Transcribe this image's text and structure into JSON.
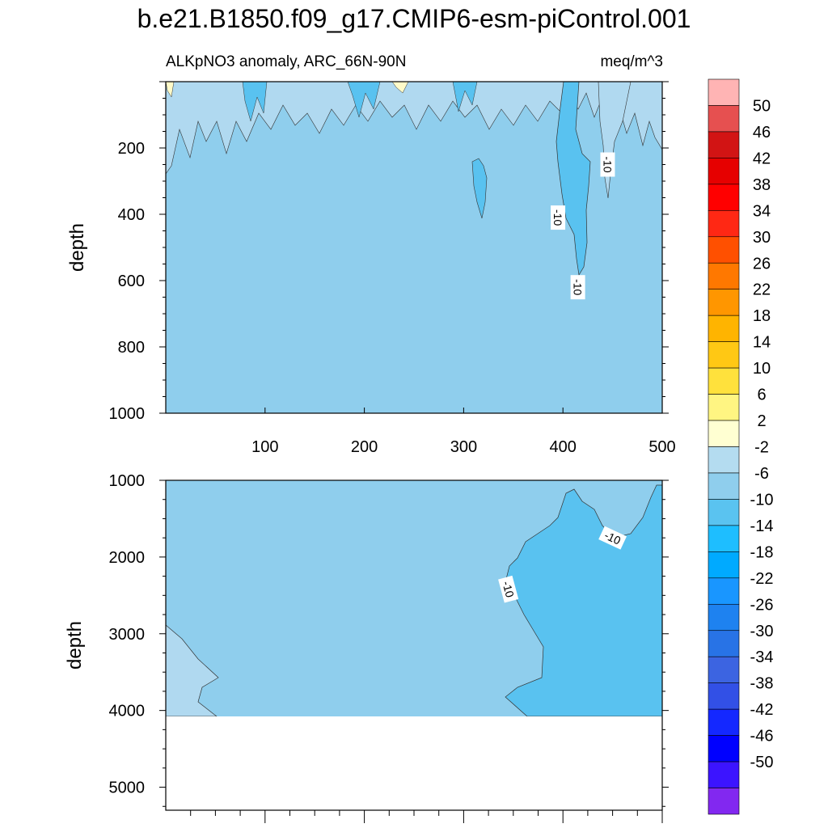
{
  "title": "b.e21.B1850.f09_g17.CMIP6-esm-piControl.001",
  "subtitle_left": "ALKpNO3 anomaly, ARC_66N-90N",
  "subtitle_right": "meq/m^3",
  "colors": {
    "bin_2": "#d3e8f5",
    "bin_6": "#b0d9f0",
    "bin_10": "#8fceed",
    "bin_14": "#59c2f0",
    "pos_small": "#fffac8"
  },
  "chart_data": [
    {
      "type": "contour",
      "panel": "upper",
      "xlim": [
        0,
        500
      ],
      "ylim": [
        1000,
        0
      ],
      "ylim_plot": [
        1000,
        0
      ],
      "xticks": [
        100,
        200,
        300,
        400,
        500
      ],
      "yticks": [
        200,
        400,
        600,
        800,
        1000
      ],
      "ylabel": "depth",
      "background_level": -10,
      "contour_labels": [
        {
          "text": "-10",
          "x": 445,
          "y": 250
        },
        {
          "text": "-10",
          "x": 395,
          "y": 410
        },
        {
          "text": "-10",
          "x": 415,
          "y": 620
        }
      ],
      "features": [
        {
          "level": -14,
          "note": "plume",
          "x": [
            385,
            445
          ],
          "y": [
            180,
            600
          ]
        },
        {
          "level": -14,
          "note": "patch",
          "x": [
            310,
            330
          ],
          "y": [
            230,
            340
          ]
        },
        {
          "level": -6,
          "note": "surface variability",
          "y": [
            0,
            250
          ]
        }
      ]
    },
    {
      "type": "contour",
      "panel": "lower",
      "xlim": [
        0,
        500
      ],
      "ylim": [
        5300,
        1000
      ],
      "yticks": [
        1000,
        2000,
        3000,
        4000,
        5000
      ],
      "ylabel": "depth",
      "data_bottom": 4120,
      "background_level": -10,
      "contour_labels": [
        {
          "text": "-10",
          "x": 450,
          "y": 1750
        },
        {
          "text": "-10",
          "x": 345,
          "y": 2420
        }
      ],
      "features": [
        {
          "level": -14,
          "note": "deep eastern water",
          "x": [
            340,
            500
          ],
          "y": [
            1100,
            4120
          ]
        },
        {
          "level": -6,
          "note": "bottom west",
          "x": [
            0,
            55
          ],
          "y": [
            2900,
            4120
          ]
        }
      ]
    }
  ],
  "colorbar": {
    "labels": [
      "50",
      "46",
      "42",
      "38",
      "34",
      "30",
      "26",
      "22",
      "18",
      "14",
      "10",
      "6",
      "2",
      "-2",
      "-6",
      "-10",
      "-14",
      "-18",
      "-22",
      "-26",
      "-30",
      "-34",
      "-38",
      "-42",
      "-46",
      "-50"
    ],
    "colors": [
      "#ffb4b4",
      "#e65050",
      "#d21414",
      "#e60000",
      "#ff0000",
      "#ff2814",
      "#ff5000",
      "#ff7800",
      "#ff9600",
      "#ffb400",
      "#ffc814",
      "#ffe13c",
      "#fff582",
      "#ffffd2",
      "#b4dcf0",
      "#8fceed",
      "#5ac3f0",
      "#1ebeff",
      "#00aaff",
      "#1996ff",
      "#1e82f0",
      "#2873e6",
      "#3c64e1",
      "#3250e6",
      "#1428ff",
      "#0000ff",
      "#3c14ff",
      "#8228f0"
    ]
  }
}
